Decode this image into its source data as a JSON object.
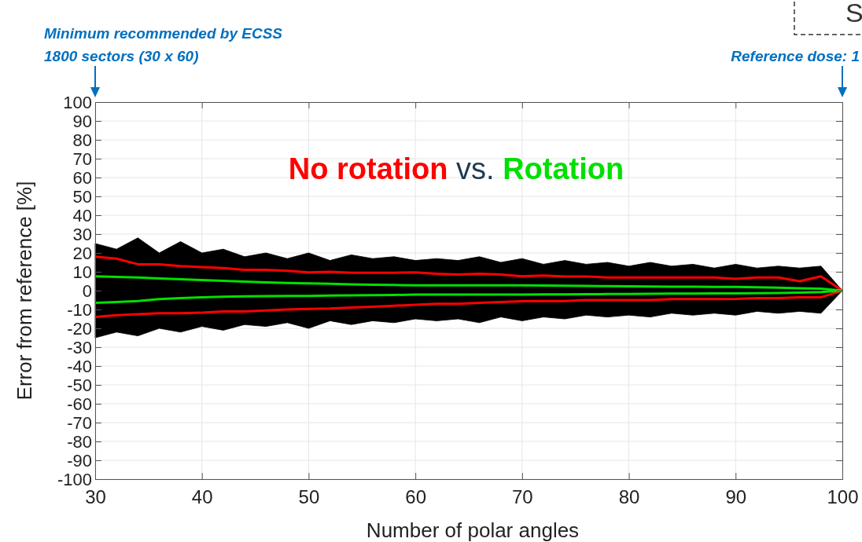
{
  "chart_data": {
    "type": "area",
    "xlabel": "Number of polar angles",
    "ylabel": "Error from reference [%]",
    "legend_title": "vs.",
    "legend": "top",
    "x": [
      30,
      32,
      34,
      36,
      38,
      40,
      42,
      44,
      46,
      48,
      50,
      52,
      54,
      56,
      58,
      60,
      62,
      64,
      66,
      68,
      70,
      72,
      74,
      76,
      78,
      80,
      82,
      84,
      86,
      88,
      90,
      92,
      94,
      96,
      98,
      100
    ],
    "xlim": [
      30,
      100
    ],
    "xticks": [
      30,
      40,
      50,
      60,
      70,
      80,
      90,
      100
    ],
    "ylim": [
      -100,
      100
    ],
    "yticks": [
      -100,
      -90,
      -80,
      -70,
      -60,
      -50,
      -40,
      -30,
      -20,
      -10,
      0,
      10,
      20,
      30,
      40,
      50,
      60,
      70,
      80,
      90,
      100
    ],
    "grid": true,
    "series": [
      {
        "color": "#000000",
        "values": [
          25,
          22,
          28,
          20,
          26,
          20,
          22,
          18,
          20,
          17,
          20,
          16,
          19,
          17,
          18,
          16,
          17,
          16,
          18,
          15,
          17,
          14,
          16,
          14,
          15,
          13,
          15,
          13,
          14,
          12,
          14,
          12,
          13,
          12,
          13,
          0
        ]
      },
      {
        "color": "#000000",
        "values": [
          -25,
          -22,
          -24,
          -20,
          -22,
          -19,
          -21,
          -18,
          -19,
          -17,
          -20,
          -16,
          -18,
          -16,
          -17,
          -15,
          -16,
          -15,
          -17,
          -14,
          -16,
          -14,
          -15,
          -13,
          -14,
          -13,
          -14,
          -12,
          -13,
          -12,
          -13,
          -11,
          -12,
          -11,
          -12,
          0
        ]
      },
      {
        "type": "line",
        "name": "No rotation",
        "color": "#ff0000",
        "values": [
          18,
          17,
          14,
          14,
          13,
          12.5,
          12,
          11,
          11,
          10.5,
          9.7,
          10,
          9.5,
          9.5,
          9.5,
          9.7,
          9,
          8.5,
          9,
          8.5,
          7.6,
          8,
          7.5,
          7.5,
          7,
          7,
          7,
          7,
          7,
          7,
          6.3,
          7,
          7,
          5,
          7.6,
          0
        ]
      },
      {
        "type": "line",
        "color": "#ff0000",
        "values": [
          -14,
          -13,
          -12.5,
          -12,
          -12,
          -11.7,
          -11,
          -11,
          -10.5,
          -10,
          -9.7,
          -9.5,
          -9,
          -8.5,
          -8,
          -7.5,
          -7,
          -7,
          -6.5,
          -6,
          -5.6,
          -5.5,
          -5.5,
          -5,
          -5,
          -5,
          -5,
          -4.5,
          -4.5,
          -4.5,
          -4.4,
          -4,
          -4,
          -3.5,
          -3.5,
          0
        ]
      },
      {
        "type": "line",
        "name": "Rotation",
        "color": "#00e000",
        "values": [
          7.6,
          7.3,
          7,
          6.5,
          6,
          5.6,
          5.2,
          4.8,
          4.4,
          4.1,
          3.9,
          3.6,
          3.3,
          3.1,
          3,
          2.8,
          2.8,
          2.8,
          2.8,
          2.8,
          2.8,
          2.7,
          2.6,
          2.5,
          2.4,
          2.3,
          2.2,
          2.1,
          2.1,
          2,
          2,
          1.8,
          1.6,
          1.3,
          1,
          0
        ]
      },
      {
        "type": "line",
        "color": "#00e000",
        "values": [
          -6.5,
          -6,
          -5.5,
          -4.5,
          -4,
          -3.5,
          -3.2,
          -3,
          -2.9,
          -2.8,
          -2.8,
          -2.6,
          -2.5,
          -2.4,
          -2.3,
          -2.1,
          -2.1,
          -2.1,
          -2.1,
          -2.1,
          -2.1,
          -2,
          -2,
          -1.9,
          -1.8,
          -1.8,
          -1.7,
          -1.6,
          -1.6,
          -1.5,
          -1.5,
          -1.4,
          -1.2,
          -1,
          -0.7,
          0
        ]
      }
    ],
    "annotations": [
      "Minimum recommended by ECSS\n1800 sectors (30 x 60)",
      "Reference dose: 1",
      "S"
    ]
  }
}
